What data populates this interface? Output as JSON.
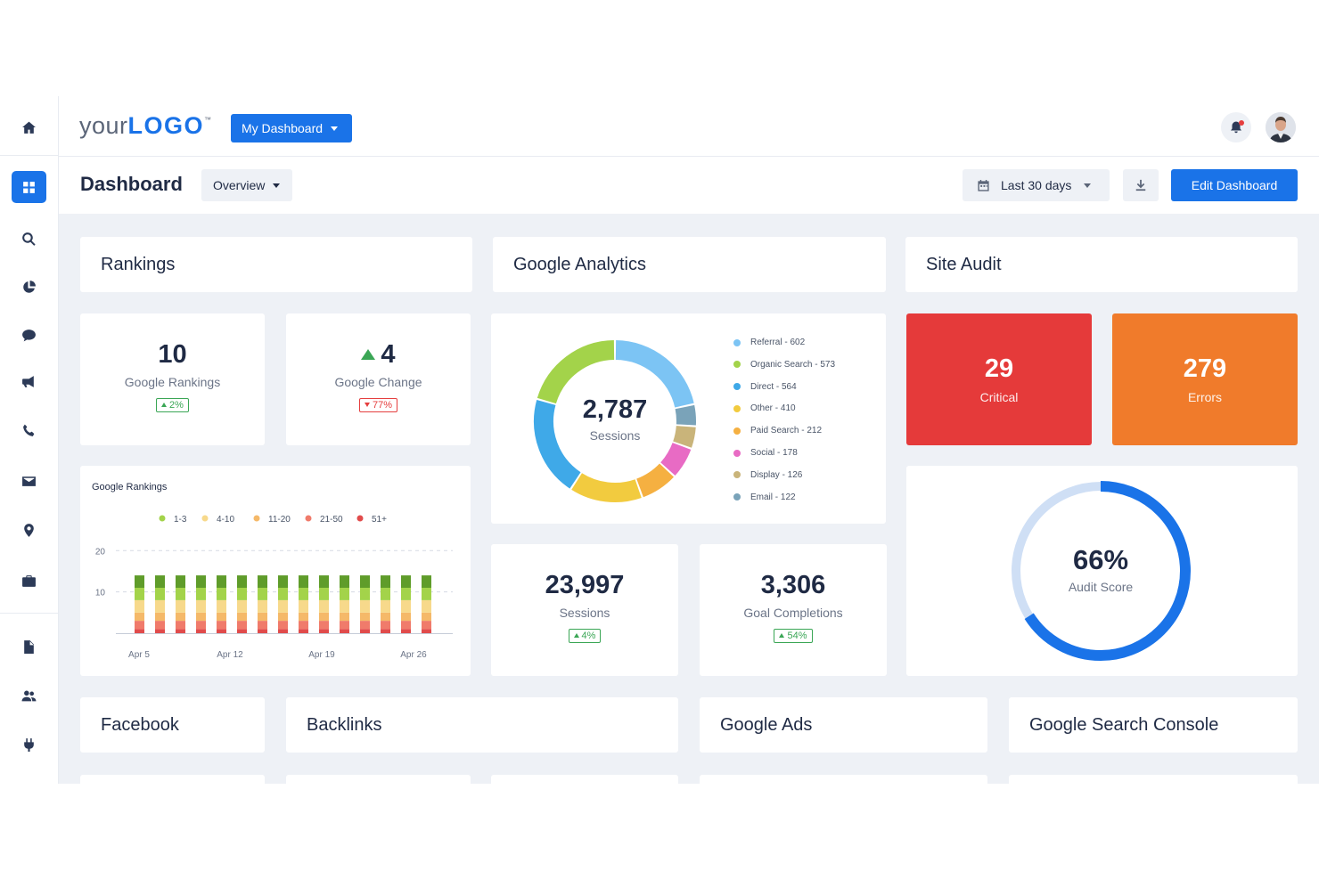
{
  "header": {
    "logo_your": "your",
    "logo_logo": "LOGO",
    "logo_tm": "™",
    "dashboard_menu": "My Dashboard"
  },
  "subheader": {
    "title": "Dashboard",
    "view": "Overview",
    "date_range": "Last 30 days",
    "edit_button": "Edit Dashboard"
  },
  "sidebar": {
    "items": [
      "home-icon",
      "dashboard-icon",
      "search-icon",
      "pie-chart-icon",
      "chat-icon",
      "megaphone-icon",
      "phone-icon",
      "mail-icon",
      "location-icon",
      "briefcase-icon",
      "document-icon",
      "users-icon",
      "plug-icon"
    ],
    "active": "dashboard-icon"
  },
  "sections": {
    "rankings": "Rankings",
    "analytics": "Google Analytics",
    "site_audit": "Site Audit",
    "facebook": "Facebook",
    "backlinks": "Backlinks",
    "google_ads": "Google Ads",
    "search_console": "Google Search Console"
  },
  "rankings": {
    "google_rankings": {
      "value": "10",
      "label": "Google Rankings",
      "change": "2%"
    },
    "google_change": {
      "value": "4",
      "label": "Google Change",
      "change": "77%"
    },
    "chart_title": "Google Rankings"
  },
  "analytics": {
    "sessions_total": "2,787",
    "sessions_label": "Sessions",
    "legend": [
      {
        "label": "Referral - 602",
        "color": "#7cc4f4"
      },
      {
        "label": "Organic Search - 573",
        "color": "#a3d34a"
      },
      {
        "label": "Direct - 564",
        "color": "#3fa9e8"
      },
      {
        "label": "Other - 410",
        "color": "#f2cb3f"
      },
      {
        "label": "Paid Search - 212",
        "color": "#f5b041"
      },
      {
        "label": "Social - 178",
        "color": "#e86bc4"
      },
      {
        "label": "Display - 126",
        "color": "#c9b47a"
      },
      {
        "label": "Email - 122",
        "color": "#7aa3b9"
      }
    ],
    "sessions": {
      "value": "23,997",
      "label": "Sessions",
      "change": "4%"
    },
    "goals": {
      "value": "3,306",
      "label": "Goal Completions",
      "change": "54%"
    }
  },
  "site_audit": {
    "critical": {
      "value": "29",
      "label": "Critical",
      "color": "#e53a3a"
    },
    "errors": {
      "value": "279",
      "label": "Errors",
      "color": "#f07b2b"
    },
    "score": {
      "value": "66%",
      "label": "Audit Score",
      "fraction": 0.66
    }
  },
  "chart_data": [
    {
      "type": "bar",
      "title": "Google Rankings",
      "stacked": true,
      "legend_position": "top",
      "ylim": [
        0,
        22
      ],
      "yticks": [
        "20",
        "10"
      ],
      "x_ticks": [
        "Apr 5",
        "Apr 12",
        "Apr 19",
        "Apr 26"
      ],
      "bar_count": 15,
      "series": [
        {
          "name": "51+",
          "color": "#e14b4b",
          "values": [
            1,
            1,
            1,
            1,
            1,
            1,
            1,
            1,
            1,
            1,
            1,
            1,
            1,
            1,
            1
          ]
        },
        {
          "name": "21-50",
          "color": "#f07b6b",
          "values": [
            2,
            2,
            2,
            2,
            2,
            2,
            2,
            2,
            2,
            2,
            2,
            2,
            2,
            2,
            2
          ]
        },
        {
          "name": "11-20",
          "color": "#f5b969",
          "values": [
            2,
            2,
            2,
            2,
            2,
            2,
            2,
            2,
            2,
            2,
            2,
            2,
            2,
            2,
            2
          ]
        },
        {
          "name": "4-10",
          "color": "#f7d98b",
          "values": [
            3,
            3,
            3,
            3,
            3,
            3,
            3,
            3,
            3,
            3,
            3,
            3,
            3,
            3,
            3
          ]
        },
        {
          "name": "1-3",
          "color": "#a3d34a",
          "values": [
            3,
            3,
            3,
            3,
            3,
            3,
            3,
            3,
            3,
            3,
            3,
            3,
            3,
            3,
            3
          ]
        },
        {
          "name": "",
          "color": "#5f9c2a",
          "values": [
            3,
            3,
            3,
            3,
            3,
            3,
            3,
            3,
            3,
            3,
            3,
            3,
            3,
            3,
            3
          ]
        }
      ]
    },
    {
      "type": "pie",
      "title": "",
      "center_value": "2,787",
      "center_label": "Sessions",
      "slices": [
        {
          "name": "Referral",
          "value": 602
        },
        {
          "name": "Organic Search",
          "value": 573
        },
        {
          "name": "Direct",
          "value": 564
        },
        {
          "name": "Other",
          "value": 410
        },
        {
          "name": "Paid Search",
          "value": 212
        },
        {
          "name": "Social",
          "value": 178
        },
        {
          "name": "Display",
          "value": 126
        },
        {
          "name": "Email",
          "value": 122
        }
      ]
    }
  ]
}
